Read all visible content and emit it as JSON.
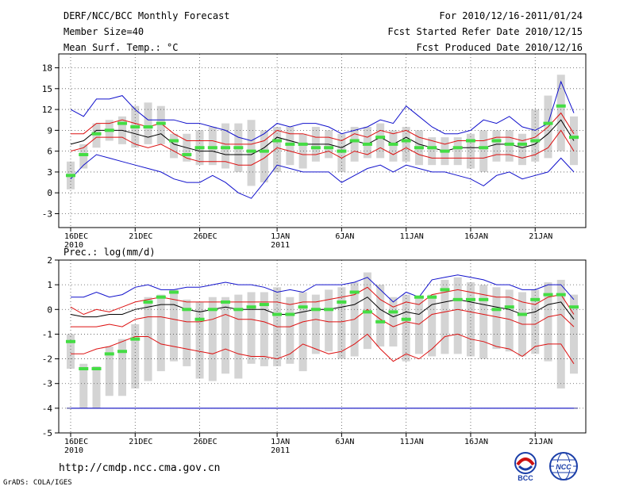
{
  "header": {
    "left": [
      "DERF/NCC/BCC Monthly Forecast",
      "Member Size=40",
      "Mean Surf. Temp.: °C"
    ],
    "right": [
      "For 2010/12/16-2011/01/24",
      "Fcst Started Refer Date 2010/12/15",
      "Fcst Produced Date 2010/12/16"
    ]
  },
  "footer": {
    "url": "http://cmdp.ncc.cma.gov.cn",
    "credit": "GrADS: COLA/IGES"
  },
  "logos": {
    "bcc_label": "BCC",
    "ncc_label": "NCC"
  },
  "colors": {
    "box": "#d4d4d4",
    "median": "#44dd44",
    "mean": "#000000",
    "inner": "#dd1111",
    "outer": "#1111cc",
    "grid": "#555555"
  },
  "chart_data": [
    {
      "type": "box-ensemble",
      "title": "Mean Surf. Temp.: °C",
      "ylim": [
        -5,
        20
      ],
      "yticks": [
        -3,
        0,
        3,
        6,
        9,
        12,
        15,
        18
      ],
      "xticks": [
        {
          "i": 0,
          "label": "16DEC",
          "sub": "2010"
        },
        {
          "i": 5,
          "label": "21DEC",
          "sub": ""
        },
        {
          "i": 10,
          "label": "26DEC",
          "sub": ""
        },
        {
          "i": 16,
          "label": "1JAN",
          "sub": "2011"
        },
        {
          "i": 21,
          "label": "6JAN",
          "sub": ""
        },
        {
          "i": 26,
          "label": "11JAN",
          "sub": ""
        },
        {
          "i": 31,
          "label": "16JAN",
          "sub": ""
        },
        {
          "i": 36,
          "label": "21JAN",
          "sub": ""
        }
      ],
      "days": 40,
      "box_low": [
        0.5,
        3.5,
        6.5,
        7.5,
        7.0,
        6.5,
        7.0,
        7.0,
        5.0,
        4.5,
        4.0,
        4.0,
        3.5,
        3.0,
        1.0,
        1.5,
        3.0,
        4.0,
        3.5,
        4.5,
        5.0,
        3.0,
        4.5,
        5.0,
        5.0,
        4.5,
        4.5,
        4.0,
        4.0,
        4.0,
        4.0,
        3.5,
        3.0,
        4.5,
        4.5,
        4.0,
        4.5,
        5.0,
        6.0,
        4.0
      ],
      "box_high": [
        4.5,
        7.0,
        10.0,
        10.5,
        11.0,
        12.5,
        13.0,
        12.5,
        8.5,
        8.5,
        9.0,
        9.5,
        10.0,
        10.0,
        10.5,
        9.0,
        9.5,
        9.5,
        8.5,
        9.5,
        9.0,
        8.5,
        9.5,
        9.5,
        10.0,
        9.0,
        9.5,
        9.0,
        8.0,
        8.0,
        8.0,
        8.5,
        9.0,
        9.0,
        9.0,
        8.5,
        12.0,
        14.0,
        17.0,
        11.0
      ],
      "median": [
        2.5,
        5.5,
        8.5,
        9.0,
        10.0,
        9.5,
        9.5,
        10.0,
        7.5,
        5.5,
        6.5,
        6.5,
        6.5,
        6.5,
        6.0,
        6.0,
        7.5,
        7.0,
        7.0,
        6.5,
        6.5,
        6.0,
        7.5,
        7.0,
        8.0,
        7.0,
        7.5,
        6.5,
        6.5,
        6.0,
        6.5,
        7.5,
        6.5,
        7.5,
        7.0,
        7.0,
        7.5,
        10.0,
        12.5,
        8.0
      ],
      "series": [
        {
          "name": "outer-upper",
          "color": "#1111cc",
          "values": [
            12.0,
            11.0,
            13.5,
            13.5,
            14.0,
            12.0,
            10.5,
            10.5,
            10.5,
            10.0,
            10.0,
            9.5,
            9.0,
            8.0,
            7.5,
            8.5,
            10.0,
            9.5,
            10.0,
            10.0,
            9.5,
            8.5,
            9.0,
            9.5,
            10.5,
            10.0,
            12.5,
            11.0,
            9.5,
            8.5,
            8.5,
            9.0,
            10.5,
            10.0,
            11.0,
            9.5,
            9.0,
            10.0,
            16.0,
            11.5
          ]
        },
        {
          "name": "inner-upper",
          "color": "#dd1111",
          "values": [
            8.5,
            8.5,
            10.0,
            10.0,
            10.5,
            10.0,
            9.5,
            10.0,
            8.5,
            7.5,
            7.5,
            7.5,
            7.0,
            7.0,
            7.0,
            7.5,
            9.0,
            8.5,
            8.5,
            8.0,
            8.0,
            7.5,
            8.5,
            8.0,
            9.0,
            8.5,
            9.0,
            8.0,
            7.5,
            7.0,
            7.5,
            7.5,
            7.5,
            8.0,
            8.0,
            7.5,
            8.0,
            9.5,
            11.5,
            8.5
          ]
        },
        {
          "name": "mean",
          "color": "#000000",
          "values": [
            7.0,
            7.5,
            9.0,
            9.0,
            9.0,
            8.5,
            8.0,
            8.5,
            7.0,
            6.5,
            6.0,
            6.0,
            5.5,
            5.5,
            5.5,
            6.5,
            8.0,
            7.5,
            7.0,
            7.0,
            7.0,
            6.5,
            7.5,
            7.0,
            8.0,
            7.0,
            8.0,
            7.0,
            6.5,
            6.0,
            6.5,
            6.5,
            6.5,
            7.0,
            7.0,
            6.5,
            7.0,
            8.5,
            10.5,
            7.5
          ]
        },
        {
          "name": "inner-lower",
          "color": "#dd1111",
          "values": [
            6.0,
            6.5,
            8.0,
            8.0,
            8.0,
            7.0,
            6.5,
            7.0,
            6.0,
            5.0,
            4.5,
            4.5,
            4.5,
            4.0,
            4.0,
            5.0,
            6.5,
            6.0,
            5.5,
            5.5,
            6.0,
            5.0,
            6.0,
            5.5,
            6.5,
            5.5,
            6.5,
            5.5,
            5.0,
            5.0,
            5.0,
            5.0,
            5.0,
            5.5,
            5.5,
            5.0,
            5.5,
            6.5,
            9.0,
            6.0
          ]
        },
        {
          "name": "outer-lower",
          "color": "#1111cc",
          "values": [
            2.0,
            4.0,
            5.5,
            5.0,
            4.5,
            4.0,
            3.5,
            3.0,
            2.0,
            1.5,
            1.5,
            2.5,
            1.5,
            0.0,
            -0.8,
            1.5,
            4.0,
            3.5,
            3.0,
            3.0,
            3.0,
            1.5,
            2.5,
            3.5,
            4.0,
            3.0,
            4.0,
            3.5,
            3.0,
            3.0,
            2.5,
            2.0,
            1.0,
            2.5,
            3.0,
            2.0,
            2.5,
            3.0,
            5.0,
            3.0
          ]
        }
      ]
    },
    {
      "type": "box-ensemble",
      "title": "Prec.: log(mm/d)",
      "ylim": [
        -5,
        2
      ],
      "yticks": [
        -5,
        -4,
        -3,
        -2,
        -1,
        0,
        1,
        2
      ],
      "xticks": [
        {
          "i": 0,
          "label": "16DEC",
          "sub": "2010"
        },
        {
          "i": 5,
          "label": "21DEC",
          "sub": ""
        },
        {
          "i": 10,
          "label": "26DEC",
          "sub": ""
        },
        {
          "i": 16,
          "label": "1JAN",
          "sub": "2011"
        },
        {
          "i": 21,
          "label": "6JAN",
          "sub": ""
        },
        {
          "i": 26,
          "label": "11JAN",
          "sub": ""
        },
        {
          "i": 31,
          "label": "16JAN",
          "sub": ""
        },
        {
          "i": 36,
          "label": "21JAN",
          "sub": ""
        }
      ],
      "days": 40,
      "floor_line": -4,
      "box_low": [
        -2.4,
        -4.0,
        -4.0,
        -3.5,
        -3.5,
        -3.2,
        -2.9,
        -2.5,
        -2.1,
        -2.3,
        -2.8,
        -2.9,
        -2.6,
        -2.8,
        -2.2,
        -2.3,
        -2.3,
        -2.2,
        -2.5,
        -1.8,
        -1.7,
        -2.0,
        -1.9,
        -1.6,
        -1.5,
        -1.5,
        -2.1,
        -1.8,
        -1.9,
        -1.8,
        -1.8,
        -1.9,
        -2.0,
        -1.6,
        -1.7,
        -1.9,
        -1.8,
        -2.1,
        -3.2,
        -2.6
      ],
      "box_high": [
        -1.0,
        -2.2,
        -2.3,
        -1.5,
        -1.2,
        -0.6,
        0.5,
        0.6,
        0.8,
        0.4,
        0.3,
        0.5,
        0.5,
        0.6,
        0.7,
        0.7,
        0.9,
        0.5,
        0.7,
        0.6,
        0.8,
        0.9,
        1.1,
        1.5,
        1.0,
        0.5,
        0.6,
        0.5,
        0.6,
        1.2,
        1.3,
        1.1,
        1.0,
        0.9,
        0.8,
        0.7,
        0.8,
        1.1,
        1.2,
        0.6
      ],
      "median": [
        -1.3,
        -2.4,
        -2.4,
        -1.8,
        -1.7,
        -1.2,
        0.3,
        0.5,
        0.7,
        0.0,
        -0.4,
        0.0,
        0.3,
        0.0,
        0.1,
        0.2,
        -0.2,
        -0.2,
        0.1,
        0.0,
        0.0,
        0.3,
        0.7,
        -0.1,
        -0.5,
        -0.1,
        -0.4,
        0.5,
        0.5,
        0.8,
        0.4,
        0.4,
        0.4,
        0.0,
        0.1,
        -0.2,
        0.4,
        0.6,
        0.6,
        0.1
      ],
      "series": [
        {
          "name": "outer-upper",
          "color": "#1111cc",
          "values": [
            0.5,
            0.5,
            0.7,
            0.5,
            0.6,
            0.9,
            1.0,
            0.8,
            0.8,
            0.9,
            0.9,
            1.0,
            1.1,
            1.0,
            1.0,
            0.9,
            0.7,
            0.8,
            0.7,
            1.0,
            1.0,
            1.0,
            1.1,
            1.3,
            0.8,
            0.3,
            0.7,
            0.5,
            1.2,
            1.3,
            1.4,
            1.3,
            1.2,
            1.0,
            1.0,
            0.8,
            0.8,
            1.0,
            1.0,
            0.4
          ]
        },
        {
          "name": "inner-upper",
          "color": "#dd1111",
          "values": [
            0.1,
            -0.2,
            0.0,
            -0.1,
            0.1,
            0.3,
            0.4,
            0.5,
            0.4,
            0.3,
            0.3,
            0.3,
            0.3,
            0.3,
            0.3,
            0.3,
            0.3,
            0.2,
            0.3,
            0.3,
            0.4,
            0.5,
            0.6,
            0.9,
            0.4,
            0.1,
            0.3,
            0.2,
            0.6,
            0.7,
            0.8,
            0.7,
            0.6,
            0.5,
            0.5,
            0.3,
            0.2,
            0.5,
            0.6,
            -0.2
          ]
        },
        {
          "name": "mean",
          "color": "#000000",
          "values": [
            -0.2,
            -0.3,
            -0.3,
            -0.2,
            -0.2,
            0.0,
            0.1,
            0.2,
            0.2,
            0.0,
            -0.1,
            0.0,
            0.1,
            0.0,
            0.0,
            0.0,
            -0.2,
            -0.2,
            -0.1,
            0.0,
            0.0,
            0.1,
            0.2,
            0.5,
            0.0,
            -0.3,
            -0.1,
            -0.2,
            0.2,
            0.3,
            0.4,
            0.3,
            0.2,
            0.1,
            0.0,
            -0.2,
            -0.1,
            0.2,
            0.3,
            -0.4
          ]
        },
        {
          "name": "inner-lower",
          "color": "#dd1111",
          "values": [
            -0.7,
            -0.7,
            -0.7,
            -0.6,
            -0.7,
            -0.4,
            -0.3,
            -0.3,
            -0.4,
            -0.5,
            -0.5,
            -0.4,
            -0.2,
            -0.4,
            -0.4,
            -0.5,
            -0.7,
            -0.7,
            -0.5,
            -0.4,
            -0.5,
            -0.5,
            -0.4,
            0.0,
            -0.4,
            -0.7,
            -0.5,
            -0.6,
            -0.2,
            -0.1,
            0.0,
            -0.1,
            -0.2,
            -0.3,
            -0.4,
            -0.6,
            -0.6,
            -0.3,
            -0.2,
            -0.7
          ]
        },
        {
          "name": "inner-lower-2",
          "color": "#dd1111",
          "values": [
            -1.8,
            -1.8,
            -1.6,
            -1.5,
            -1.3,
            -1.1,
            -1.1,
            -1.4,
            -1.5,
            -1.6,
            -1.7,
            -1.8,
            -1.6,
            -1.8,
            -1.9,
            -1.9,
            -2.0,
            -1.8,
            -1.4,
            -1.6,
            -1.8,
            -1.7,
            -1.4,
            -1.0,
            -1.6,
            -2.1,
            -1.8,
            -2.0,
            -1.6,
            -1.1,
            -1.0,
            -1.2,
            -1.3,
            -1.5,
            -1.6,
            -1.9,
            -1.5,
            -1.4,
            -1.4,
            -2.2
          ]
        },
        {
          "name": "outer-lower",
          "color": "#1111cc",
          "values": [
            -4.0,
            -4.0,
            -4.0,
            -4.0,
            -4.0,
            -4.0,
            -4.0,
            -4.0,
            -4.0,
            -4.0,
            -4.0,
            -4.0,
            -4.0,
            -4.0,
            -4.0,
            -4.0,
            -4.0,
            -4.0,
            -4.0,
            -4.0,
            -4.0,
            -4.0,
            -4.0,
            -4.0,
            -4.0,
            -4.0,
            -4.0,
            -4.0,
            -4.0,
            -4.0,
            -4.0,
            -4.0,
            -4.0,
            -4.0,
            -4.0,
            -4.0,
            -4.0,
            -4.0,
            -4.0,
            -4.0
          ]
        }
      ]
    }
  ]
}
